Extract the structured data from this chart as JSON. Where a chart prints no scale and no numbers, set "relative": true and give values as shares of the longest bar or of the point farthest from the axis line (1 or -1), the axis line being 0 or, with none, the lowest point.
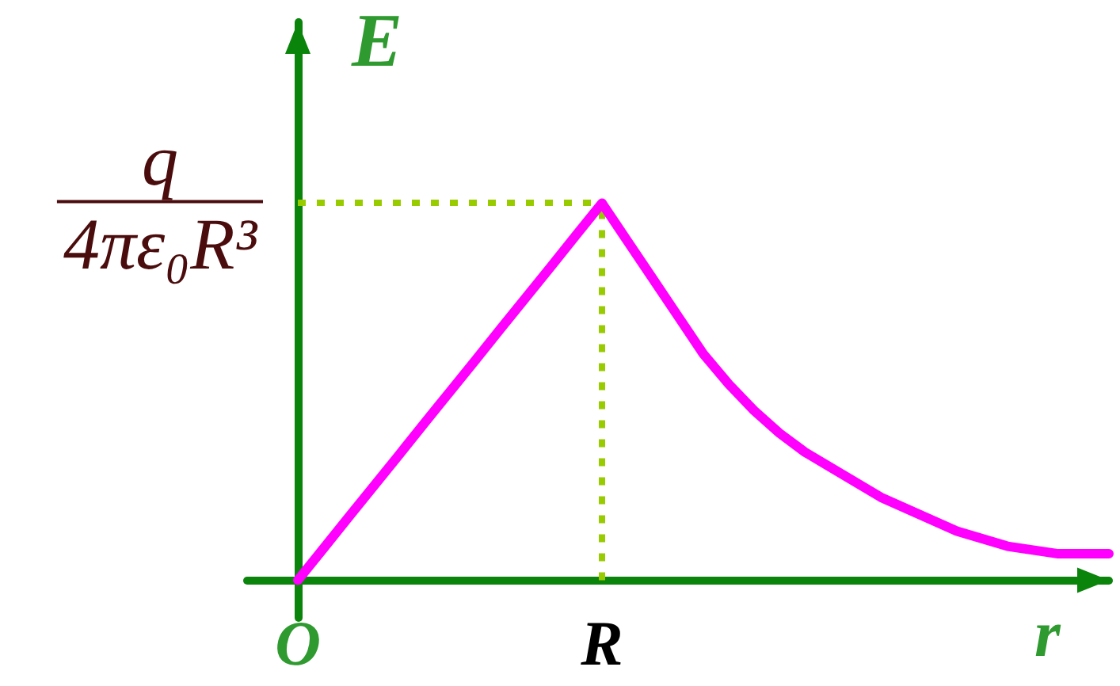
{
  "chart_data": {
    "type": "line",
    "xlabel": "r",
    "ylabel": "E",
    "relative": true,
    "categories": [
      "O",
      null,
      null,
      null,
      null,
      null,
      null,
      null,
      null,
      null,
      null,
      null,
      "R",
      null,
      null,
      null,
      null,
      null,
      null,
      null,
      null,
      null,
      null,
      null,
      null,
      null,
      null,
      null,
      null,
      null,
      null,
      null,
      null
    ],
    "series": [
      {
        "color": "#ff00ff",
        "values": [
          0,
          0.083,
          0.167,
          0.25,
          0.333,
          0.417,
          0.5,
          0.583,
          0.667,
          0.75,
          0.833,
          0.917,
          1,
          0.9,
          0.8,
          0.7,
          0.6,
          0.52,
          0.45,
          0.39,
          0.34,
          0.3,
          0.26,
          0.22,
          0.19,
          0.16,
          0.13,
          0.11,
          0.09,
          0.08,
          0.07,
          0.07,
          0.07
        ]
      }
    ],
    "ref_lines": [
      {
        "axis": "y",
        "value": 1,
        "label": "q\n4πε₀R³",
        "color": "#99cc00",
        "line_style": "dotted"
      },
      {
        "axis": "x",
        "value": "R",
        "color": "#99cc00",
        "line_style": "dotted"
      }
    ],
    "marker": "none",
    "line_style": "solid"
  }
}
